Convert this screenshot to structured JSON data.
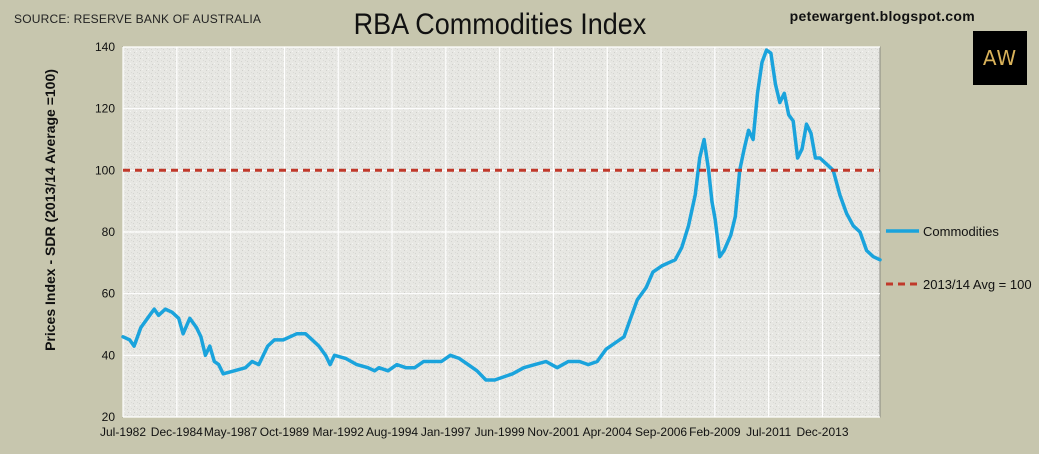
{
  "header": {
    "source": "SOURCE: RESERVE BANK OF AUSTRALIA",
    "blog": "petewargent.blogspot.com",
    "logo_text": "AW"
  },
  "colors": {
    "background": "#c7c6ae",
    "plot_background": "#e6e6e2",
    "commodities_line": "#1aa3dc",
    "average_line": "#c0392b",
    "grid": "#ffffff"
  },
  "chart_data": {
    "type": "line",
    "title": "RBA Commodities Index",
    "ylabel": "Prices Index - SDR (2013/14 Average =100)",
    "xlabel": "",
    "ylim": [
      20,
      140
    ],
    "yticks": [
      20,
      40,
      60,
      80,
      100,
      120,
      140
    ],
    "x_tick_labels": [
      "Jul-1982",
      "Dec-1984",
      "May-1987",
      "Oct-1989",
      "Mar-1992",
      "Aug-1994",
      "Jan-1997",
      "Jun-1999",
      "Nov-2001",
      "Apr-2004",
      "Sep-2006",
      "Feb-2009",
      "Jul-2011",
      "Dec-2013"
    ],
    "x_tick_years": [
      1982.5,
      1984.917,
      1987.333,
      1989.75,
      1992.167,
      1994.583,
      1997.0,
      1999.417,
      2001.833,
      2004.25,
      2006.667,
      2009.083,
      2011.5,
      2013.917
    ],
    "xlim": [
      1982.5,
      2016.5
    ],
    "grid": true,
    "legend_position": "right",
    "series": [
      {
        "name": "Commodities",
        "color": "#1aa3dc",
        "style": "solid",
        "points": [
          [
            1982.5,
            46
          ],
          [
            1982.8,
            45
          ],
          [
            1983.0,
            43
          ],
          [
            1983.3,
            49
          ],
          [
            1983.6,
            52
          ],
          [
            1983.9,
            55
          ],
          [
            1984.1,
            53
          ],
          [
            1984.4,
            55
          ],
          [
            1984.7,
            54
          ],
          [
            1985.0,
            52
          ],
          [
            1985.2,
            47
          ],
          [
            1985.5,
            52
          ],
          [
            1985.8,
            49
          ],
          [
            1986.0,
            46
          ],
          [
            1986.2,
            40
          ],
          [
            1986.4,
            43
          ],
          [
            1986.6,
            38
          ],
          [
            1986.8,
            37
          ],
          [
            1987.0,
            34
          ],
          [
            1987.5,
            35
          ],
          [
            1988.0,
            36
          ],
          [
            1988.3,
            38
          ],
          [
            1988.6,
            37
          ],
          [
            1989.0,
            43
          ],
          [
            1989.3,
            45
          ],
          [
            1989.7,
            45
          ],
          [
            1990.0,
            46
          ],
          [
            1990.3,
            47
          ],
          [
            1990.7,
            47
          ],
          [
            1991.0,
            45
          ],
          [
            1991.3,
            43
          ],
          [
            1991.6,
            40
          ],
          [
            1991.8,
            37
          ],
          [
            1992.0,
            40
          ],
          [
            1992.5,
            39
          ],
          [
            1993.0,
            37
          ],
          [
            1993.5,
            36
          ],
          [
            1993.8,
            35
          ],
          [
            1994.0,
            36
          ],
          [
            1994.4,
            35
          ],
          [
            1994.8,
            37
          ],
          [
            1995.2,
            36
          ],
          [
            1995.6,
            36
          ],
          [
            1996.0,
            38
          ],
          [
            1996.4,
            38
          ],
          [
            1996.8,
            38
          ],
          [
            1997.2,
            40
          ],
          [
            1997.6,
            39
          ],
          [
            1998.0,
            37
          ],
          [
            1998.4,
            35
          ],
          [
            1998.8,
            32
          ],
          [
            1999.2,
            32
          ],
          [
            1999.6,
            33
          ],
          [
            2000.0,
            34
          ],
          [
            2000.5,
            36
          ],
          [
            2001.0,
            37
          ],
          [
            2001.5,
            38
          ],
          [
            2002.0,
            36
          ],
          [
            2002.5,
            38
          ],
          [
            2003.0,
            38
          ],
          [
            2003.4,
            37
          ],
          [
            2003.8,
            38
          ],
          [
            2004.2,
            42
          ],
          [
            2004.6,
            44
          ],
          [
            2005.0,
            46
          ],
          [
            2005.3,
            52
          ],
          [
            2005.6,
            58
          ],
          [
            2006.0,
            62
          ],
          [
            2006.3,
            67
          ],
          [
            2006.7,
            69
          ],
          [
            2007.0,
            70
          ],
          [
            2007.3,
            71
          ],
          [
            2007.6,
            75
          ],
          [
            2007.9,
            82
          ],
          [
            2008.2,
            92
          ],
          [
            2008.4,
            104
          ],
          [
            2008.6,
            110
          ],
          [
            2008.8,
            100
          ],
          [
            2008.95,
            90
          ],
          [
            2009.1,
            84
          ],
          [
            2009.3,
            72
          ],
          [
            2009.5,
            74
          ],
          [
            2009.8,
            79
          ],
          [
            2010.0,
            85
          ],
          [
            2010.2,
            100
          ],
          [
            2010.4,
            107
          ],
          [
            2010.6,
            113
          ],
          [
            2010.8,
            110
          ],
          [
            2011.0,
            125
          ],
          [
            2011.2,
            135
          ],
          [
            2011.4,
            139
          ],
          [
            2011.6,
            138
          ],
          [
            2011.8,
            128
          ],
          [
            2012.0,
            122
          ],
          [
            2012.2,
            125
          ],
          [
            2012.4,
            118
          ],
          [
            2012.6,
            116
          ],
          [
            2012.8,
            104
          ],
          [
            2013.0,
            107
          ],
          [
            2013.2,
            115
          ],
          [
            2013.4,
            112
          ],
          [
            2013.6,
            104
          ],
          [
            2013.8,
            104
          ],
          [
            2014.1,
            102
          ],
          [
            2014.4,
            100
          ],
          [
            2014.7,
            92
          ],
          [
            2015.0,
            86
          ],
          [
            2015.3,
            82
          ],
          [
            2015.6,
            80
          ],
          [
            2015.9,
            74
          ],
          [
            2016.2,
            72
          ],
          [
            2016.5,
            71
          ]
        ]
      },
      {
        "name": "2013/14 Avg = 100",
        "color": "#c0392b",
        "style": "dashed",
        "points": [
          [
            1982.5,
            100
          ],
          [
            2016.5,
            100
          ]
        ]
      }
    ]
  }
}
